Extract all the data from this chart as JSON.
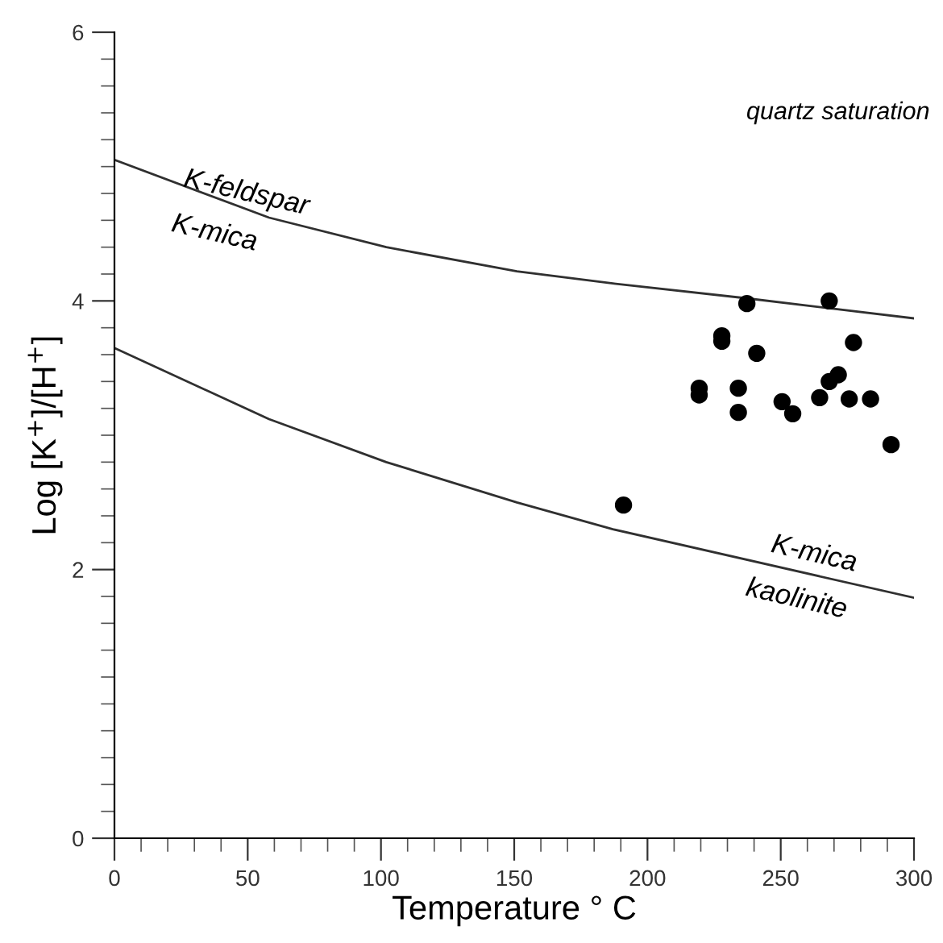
{
  "chart_data": {
    "type": "scatter",
    "xlabel": "Temperature ° C",
    "ylabel": "Log [K$^{+}$]/[H$^{+}$]",
    "xlim": [
      0,
      300
    ],
    "ylim": [
      0,
      6
    ],
    "xticks": [
      0,
      50,
      100,
      150,
      200,
      250,
      300
    ],
    "yticks": [
      0,
      2,
      4,
      6
    ],
    "grid": false,
    "series": [
      {
        "type": "line",
        "color": "#303030",
        "line_style": "solid",
        "marker": "none",
        "x": [
          0,
          58,
          102,
          151,
          187,
          237,
          300
        ],
        "values": [
          5.05,
          4.62,
          4.4,
          4.22,
          4.13,
          4.02,
          3.87
        ]
      },
      {
        "type": "line",
        "color": "#303030",
        "line_style": "solid",
        "marker": "none",
        "x": [
          0,
          58,
          102,
          151,
          187,
          300
        ],
        "values": [
          3.65,
          3.12,
          2.8,
          2.5,
          2.3,
          1.79
        ]
      },
      {
        "type": "scatter",
        "color": "#000000",
        "marker": "circle",
        "x": [
          237.3,
          268.2,
          227.9,
          227.9,
          241.0,
          277.3,
          219.4,
          219.4,
          234.1,
          234.1,
          250.5,
          254.5,
          264.6,
          268.2,
          271.6,
          275.7,
          283.7,
          291.4,
          191.0
        ],
        "values": [
          3.98,
          4.0,
          3.74,
          3.7,
          3.61,
          3.69,
          3.35,
          3.3,
          3.35,
          3.17,
          3.25,
          3.16,
          3.28,
          3.4,
          3.45,
          3.27,
          3.27,
          2.93,
          2.48
        ]
      }
    ],
    "annotations": [
      "quartz saturation",
      "K-feldspar",
      "K-mica",
      "K-mica",
      "kaolinite"
    ]
  }
}
